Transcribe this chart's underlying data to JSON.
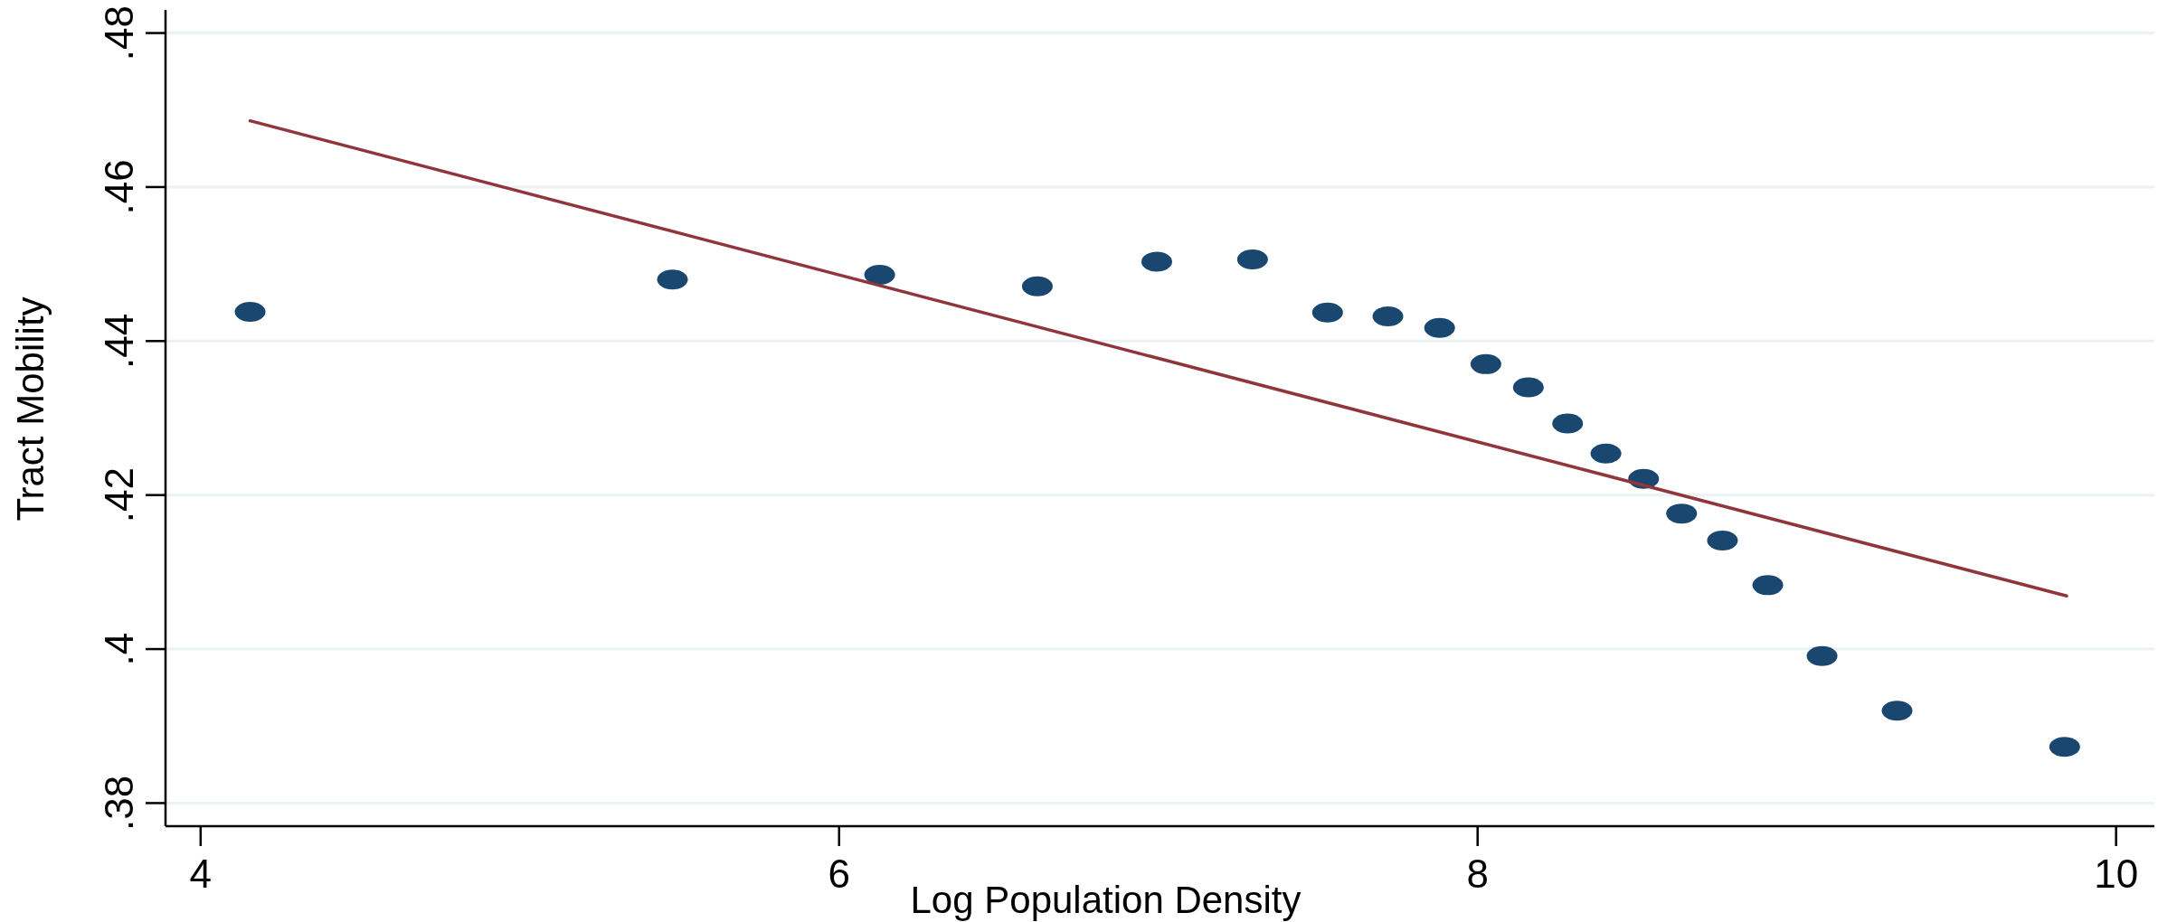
{
  "chart_data": {
    "type": "scatter",
    "xlabel": "Log Population Density",
    "ylabel": "Tract Mobility",
    "xlim": [
      3.89,
      10.12
    ],
    "ylim": [
      0.377,
      0.483
    ],
    "xticks": [
      4,
      6,
      8,
      10
    ],
    "yticks": [
      {
        "value": 0.38,
        "label": ".38"
      },
      {
        "value": 0.4,
        "label": ".4"
      },
      {
        "value": 0.42,
        "label": ".42"
      },
      {
        "value": 0.44,
        "label": ".44"
      },
      {
        "value": 0.46,
        "label": ".46"
      },
      {
        "value": 0.48,
        "label": ".48"
      }
    ],
    "grid": "y",
    "series": [
      {
        "marker": "circle",
        "color": "#1a476f",
        "x": [
          4.155,
          5.478,
          6.127,
          6.621,
          6.995,
          7.295,
          7.53,
          7.719,
          7.881,
          8.026,
          8.159,
          8.282,
          8.402,
          8.52,
          8.639,
          8.767,
          8.909,
          9.079,
          9.314,
          9.839
        ],
        "values": [
          0.4438,
          0.448,
          0.4486,
          0.4471,
          0.4503,
          0.4506,
          0.4437,
          0.4432,
          0.4417,
          0.437,
          0.434,
          0.4293,
          0.4254,
          0.4221,
          0.4176,
          0.4141,
          0.4083,
          0.3991,
          0.392,
          0.3873
        ]
      },
      {
        "type": "line",
        "line_style": "solid",
        "color": "#90353b",
        "x": [
          4.155,
          9.845
        ],
        "values": [
          0.4686,
          0.4069
        ]
      }
    ]
  }
}
